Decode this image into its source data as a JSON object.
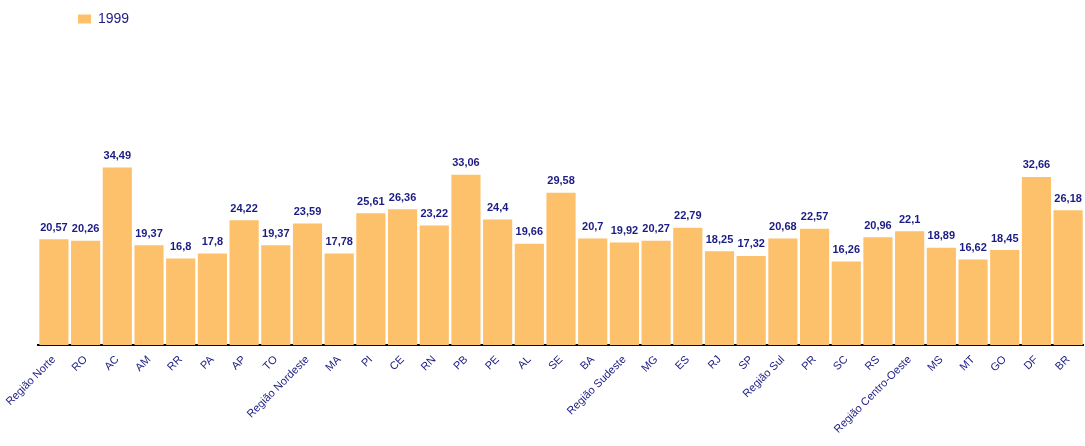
{
  "chart_data": {
    "type": "bar",
    "categories": [
      "Região Norte",
      "RO",
      "AC",
      "AM",
      "RR",
      "PA",
      "AP",
      "TO",
      "Região Nordeste",
      "MA",
      "PI",
      "CE",
      "RN",
      "PB",
      "PE",
      "AL",
      "SE",
      "BA",
      "Região Sudeste",
      "MG",
      "ES",
      "RJ",
      "SP",
      "Região Sul",
      "PR",
      "SC",
      "RS",
      "Região Centro-Oeste",
      "MS",
      "MT",
      "GO",
      "DF",
      "BR"
    ],
    "series": [
      {
        "name": "1999",
        "color": "#fdc06b",
        "values": [
          20.57,
          20.26,
          34.49,
          19.37,
          16.8,
          17.8,
          24.22,
          19.37,
          23.59,
          17.78,
          25.61,
          26.36,
          23.22,
          33.06,
          24.4,
          19.66,
          29.58,
          20.7,
          19.92,
          20.27,
          22.79,
          18.25,
          17.32,
          20.68,
          22.57,
          16.26,
          20.96,
          22.1,
          18.89,
          16.62,
          18.45,
          32.66,
          26.18
        ],
        "value_labels": [
          "20,57",
          "20,26",
          "34,49",
          "19,37",
          "16,8",
          "17,8",
          "24,22",
          "19,37",
          "23,59",
          "17,78",
          "25,61",
          "26,36",
          "23,22",
          "33,06",
          "24,4",
          "19,66",
          "29,58",
          "20,7",
          "19,92",
          "20,27",
          "22,79",
          "18,25",
          "17,32",
          "20,68",
          "22,57",
          "16,26",
          "20,96",
          "22,1",
          "18,89",
          "16,62",
          "18,45",
          "32,66",
          "26,18"
        ]
      }
    ],
    "tick_labels": "x",
    "legend": "top left"
  }
}
